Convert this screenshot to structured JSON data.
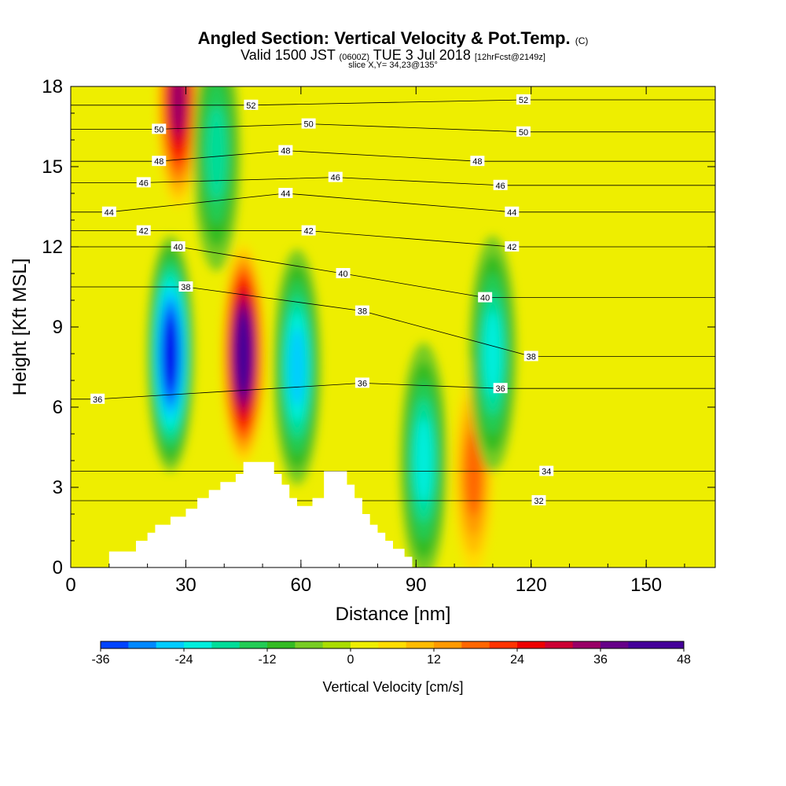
{
  "chart_data": {
    "type": "heatmap",
    "title": "Angled Section: Vertical Velocity & Pot.Temp.",
    "title_suffix": "(C)",
    "subtitle_valid": "Valid 1500 JST",
    "subtitle_utc": "(0600Z)",
    "subtitle_date": "TUE 3 Jul 2018",
    "subtitle_fcst": "[12hrFcst@2149z]",
    "slice_text": "slice X,Y= 34,23@135°",
    "xlabel": "Distance [nm]",
    "ylabel": "Height [Kft MSL]",
    "xlim": [
      0,
      168
    ],
    "ylim": [
      0,
      18
    ],
    "xticks": [
      "0",
      "30",
      "60",
      "90",
      "120",
      "150"
    ],
    "yticks": [
      "0",
      "3",
      "6",
      "9",
      "12",
      "15",
      "18"
    ],
    "colorbar": {
      "label": "Vertical Velocity [cm/s]",
      "range": [
        -36,
        48
      ],
      "step": 4,
      "ticks": [
        "-36",
        "-24",
        "-12",
        "0",
        "12",
        "24",
        "36",
        "48"
      ],
      "colors": [
        "#0000ee",
        "#0044ff",
        "#0088ff",
        "#00ccff",
        "#00eedd",
        "#00dd99",
        "#22cc55",
        "#33bb22",
        "#77cc22",
        "#aadd00",
        "#eeee00",
        "#ffdd00",
        "#ffbb00",
        "#ff9900",
        "#ff6600",
        "#ff3300",
        "#ee0000",
        "#cc0033",
        "#990066",
        "#660088",
        "#440099"
      ]
    },
    "features": [
      {
        "x": 26,
        "y": 8,
        "value": -36
      },
      {
        "x": 45,
        "y": 8,
        "value": 48
      },
      {
        "x": 59,
        "y": 7.5,
        "value": -24
      },
      {
        "x": 92,
        "y": 4,
        "value": -20
      },
      {
        "x": 105,
        "y": 3.5,
        "value": 20
      },
      {
        "x": 28,
        "y": 17.5,
        "value": 36
      },
      {
        "x": 38,
        "y": 15.5,
        "value": -16
      },
      {
        "x": 110,
        "y": 8,
        "value": -20
      }
    ],
    "contour_labels": [
      {
        "text": "52",
        "x": 47,
        "y": 17.3
      },
      {
        "text": "52",
        "x": 118,
        "y": 17.5
      },
      {
        "text": "50",
        "x": 23,
        "y": 16.4
      },
      {
        "text": "50",
        "x": 62,
        "y": 16.6
      },
      {
        "text": "50",
        "x": 118,
        "y": 16.3
      },
      {
        "text": "48",
        "x": 23,
        "y": 15.2
      },
      {
        "text": "48",
        "x": 56,
        "y": 15.6
      },
      {
        "text": "48",
        "x": 106,
        "y": 15.2
      },
      {
        "text": "46",
        "x": 19,
        "y": 14.4
      },
      {
        "text": "46",
        "x": 69,
        "y": 14.6
      },
      {
        "text": "46",
        "x": 112,
        "y": 14.3
      },
      {
        "text": "44",
        "x": 10,
        "y": 13.3
      },
      {
        "text": "44",
        "x": 56,
        "y": 14
      },
      {
        "text": "44",
        "x": 115,
        "y": 13.3
      },
      {
        "text": "42",
        "x": 19,
        "y": 12.6
      },
      {
        "text": "42",
        "x": 62,
        "y": 12.6
      },
      {
        "text": "42",
        "x": 115,
        "y": 12
      },
      {
        "text": "40",
        "x": 28,
        "y": 12
      },
      {
        "text": "40",
        "x": 71,
        "y": 11
      },
      {
        "text": "40",
        "x": 108,
        "y": 10.1
      },
      {
        "text": "38",
        "x": 30,
        "y": 10.5
      },
      {
        "text": "38",
        "x": 76,
        "y": 9.6
      },
      {
        "text": "38",
        "x": 120,
        "y": 7.9
      },
      {
        "text": "36",
        "x": 7,
        "y": 6.3
      },
      {
        "text": "36",
        "x": 76,
        "y": 6.9
      },
      {
        "text": "36",
        "x": 112,
        "y": 6.7
      },
      {
        "text": "34",
        "x": 124,
        "y": 3.6
      },
      {
        "text": "32",
        "x": 122,
        "y": 2.5
      }
    ],
    "terrain": [
      [
        10,
        0
      ],
      [
        10,
        0.6
      ],
      [
        17,
        0.6
      ],
      [
        17,
        1
      ],
      [
        20,
        1
      ],
      [
        20,
        1.3
      ],
      [
        22,
        1.3
      ],
      [
        22,
        1.6
      ],
      [
        26,
        1.6
      ],
      [
        26,
        1.9
      ],
      [
        30,
        1.9
      ],
      [
        30,
        2.2
      ],
      [
        33,
        2.2
      ],
      [
        33,
        2.6
      ],
      [
        36,
        2.6
      ],
      [
        36,
        2.9
      ],
      [
        39,
        2.9
      ],
      [
        39,
        3.2
      ],
      [
        43,
        3.2
      ],
      [
        43,
        3.5
      ],
      [
        45,
        3.5
      ],
      [
        45,
        3.95
      ],
      [
        53,
        3.95
      ],
      [
        53,
        3.5
      ],
      [
        55,
        3.5
      ],
      [
        55,
        3.1
      ],
      [
        57,
        3.1
      ],
      [
        57,
        2.6
      ],
      [
        59,
        2.6
      ],
      [
        59,
        2.3
      ],
      [
        63,
        2.3
      ],
      [
        63,
        2.6
      ],
      [
        66,
        2.6
      ],
      [
        66,
        3.6
      ],
      [
        72,
        3.6
      ],
      [
        72,
        3.1
      ],
      [
        74,
        3.1
      ],
      [
        74,
        2.6
      ],
      [
        76,
        2.6
      ],
      [
        76,
        2.0
      ],
      [
        78,
        2.0
      ],
      [
        78,
        1.6
      ],
      [
        80,
        1.6
      ],
      [
        80,
        1.3
      ],
      [
        82,
        1.3
      ],
      [
        82,
        1.0
      ],
      [
        84,
        1.0
      ],
      [
        84,
        0.7
      ],
      [
        87,
        0.7
      ],
      [
        87,
        0.4
      ],
      [
        89,
        0.4
      ],
      [
        89,
        0
      ]
    ]
  }
}
